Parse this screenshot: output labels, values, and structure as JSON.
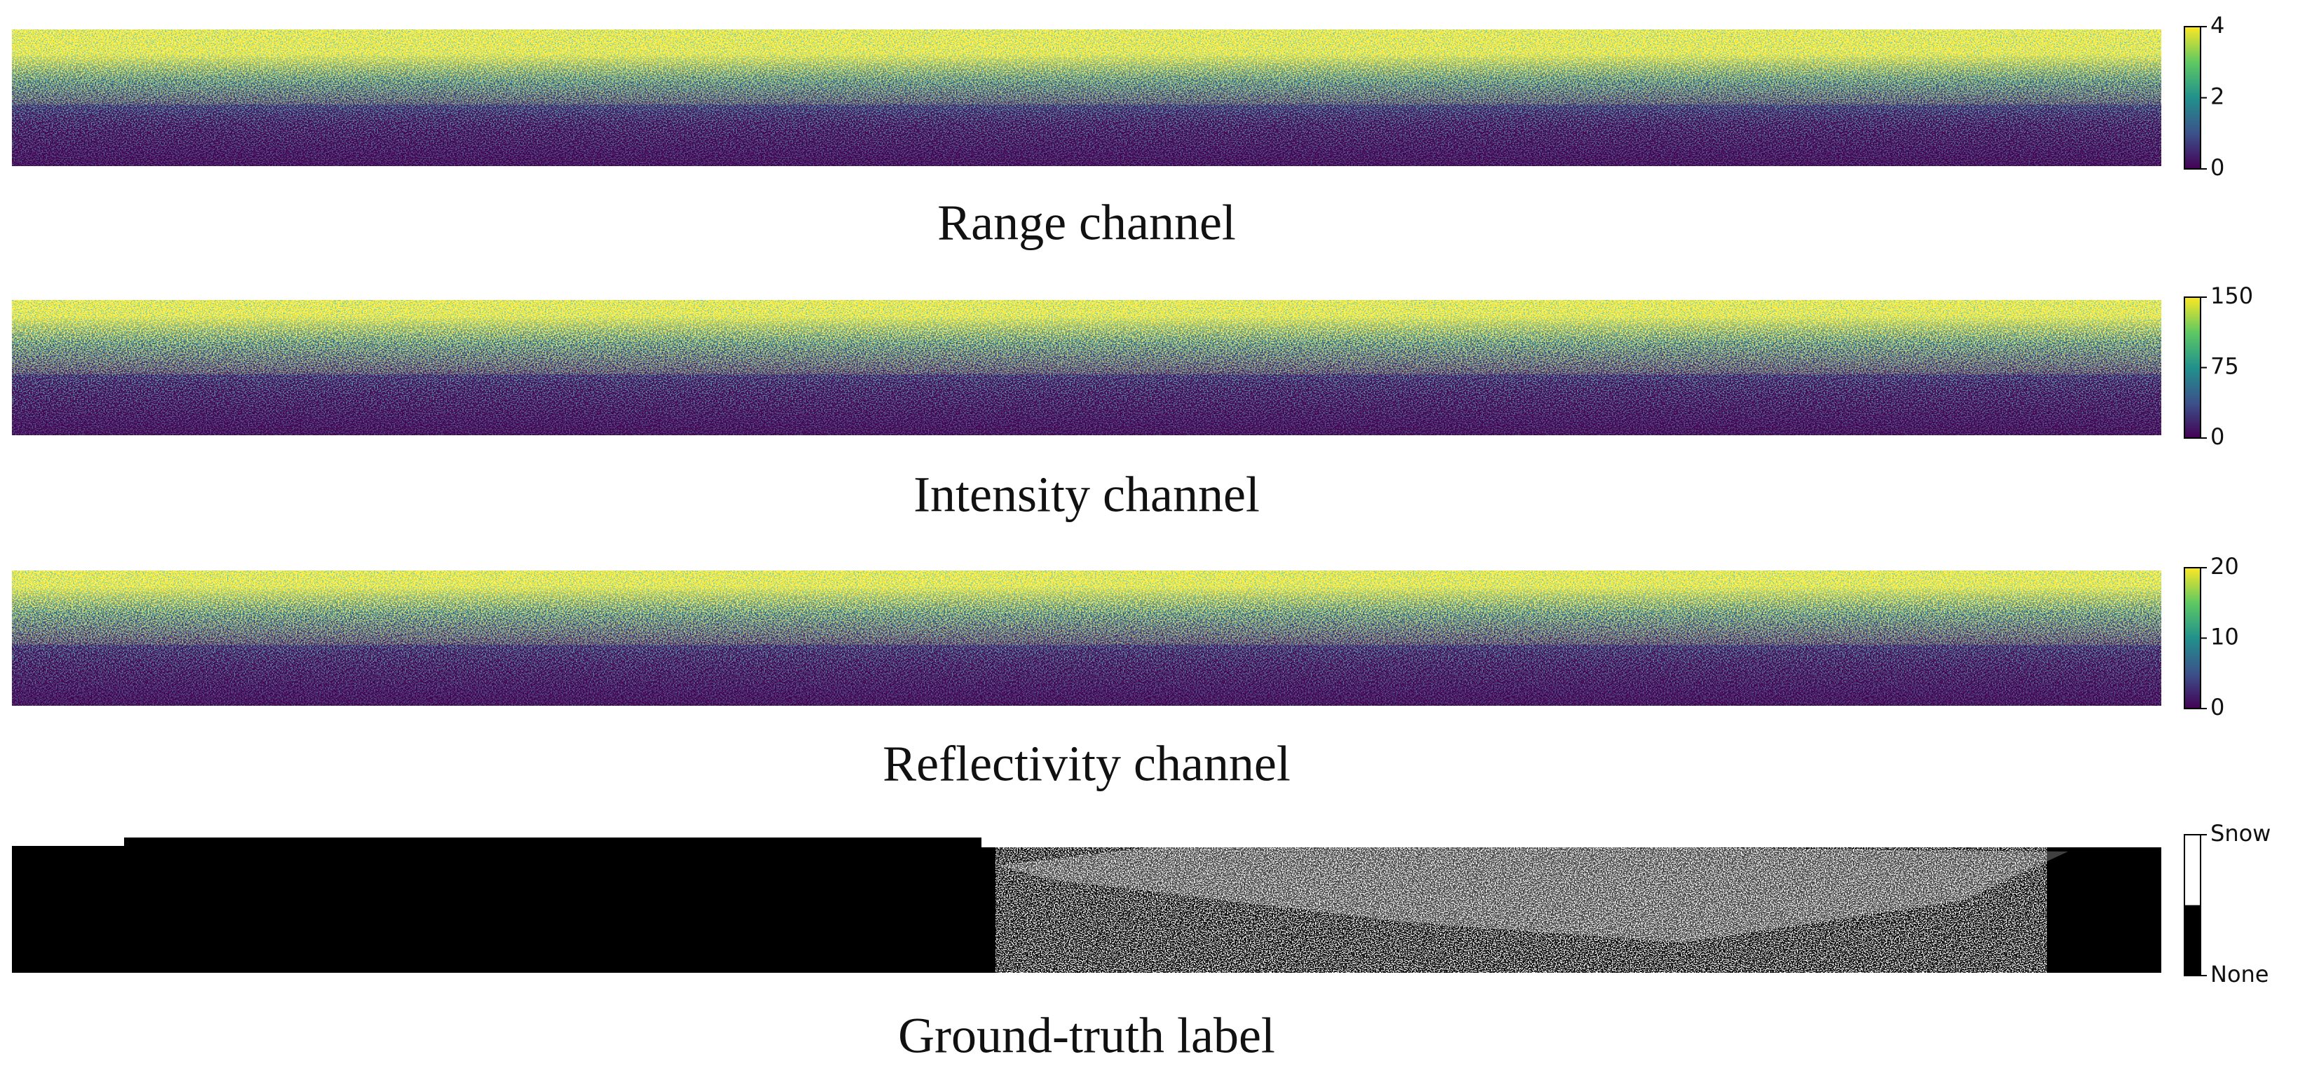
{
  "chart_data": [
    {
      "type": "heatmap",
      "title": "Range channel",
      "colors": [
        "#440154",
        "#3b528b",
        "#21918c",
        "#5ec962",
        "#fde725"
      ],
      "ylim": [
        0,
        4
      ],
      "yticks": [
        0,
        2,
        4
      ]
    },
    {
      "type": "heatmap",
      "title": "Intensity channel",
      "colors": [
        "#440154",
        "#3b528b",
        "#21918c",
        "#5ec962",
        "#fde725"
      ],
      "ylim": [
        0,
        150
      ],
      "yticks": [
        0,
        75,
        150
      ]
    },
    {
      "type": "heatmap",
      "title": "Reflectivity channel",
      "colors": [
        "#440154",
        "#3b528b",
        "#21918c",
        "#5ec962",
        "#fde725"
      ],
      "ylim": [
        0,
        20
      ],
      "yticks": [
        0,
        10,
        20
      ]
    },
    {
      "type": "binary",
      "title": "Ground-truth label",
      "colors": [
        "#000000",
        "#ffffff"
      ],
      "ylim": [
        0,
        1
      ],
      "yticks": [
        {
          "value": 0,
          "label": "None"
        },
        {
          "value": 1,
          "label": "Snow"
        }
      ]
    }
  ]
}
